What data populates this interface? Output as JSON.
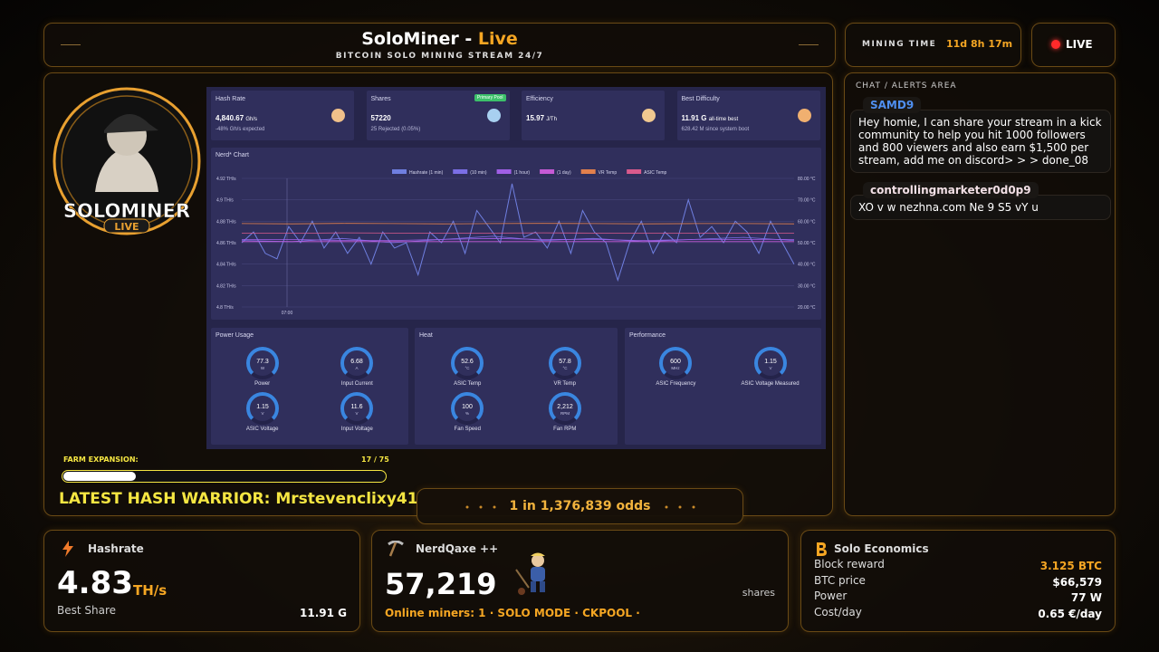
{
  "header": {
    "title": "SoloMiner - ",
    "title_highlight": "Live",
    "subtitle": "BITCOIN SOLO MINING STREAM 24/7"
  },
  "mining_time": {
    "label": "MINING TIME",
    "value": "11d 8h 17m"
  },
  "live_badge": "LIVE",
  "logo": {
    "name": "SOLOMINER",
    "tag": "LIVE"
  },
  "dashboard": {
    "cards": [
      {
        "title": "Hash Rate",
        "value": "4,840.67",
        "unit": "Gh/s",
        "note": "-48% Gh/s expected"
      },
      {
        "title": "Shares",
        "value": "57220",
        "badge": "Primary Pool",
        "note": "25 Rejected (0.05%)"
      },
      {
        "title": "Efficiency",
        "value": "15.97",
        "unit": "J/Th"
      },
      {
        "title": "Best Difficulty",
        "value": "11.91 G",
        "unit": "all-time best",
        "note": "628.42 M since system boot"
      }
    ],
    "chart": {
      "title": "Nerd* Chart",
      "ylim": [
        4.8,
        4.92
      ],
      "yticks": [
        {
          "value": 4.92,
          "label": "4.92 TH/s"
        },
        {
          "value": 4.9,
          "label": "4.9 TH/s"
        },
        {
          "value": 4.88,
          "label": "4.88 TH/s"
        },
        {
          "value": 4.86,
          "label": "4.86 TH/s"
        },
        {
          "value": 4.84,
          "label": "4.84 TH/s"
        },
        {
          "value": 4.82,
          "label": "4.82 TH/s"
        },
        {
          "value": 4.8,
          "label": "4.8 TH/s"
        }
      ],
      "y2lim": [
        20,
        80
      ],
      "y2ticks": [
        {
          "value": 80,
          "label": "80.00 °C"
        },
        {
          "value": 70,
          "label": "70.00 °C"
        },
        {
          "value": 60,
          "label": "60.00 °C"
        },
        {
          "value": 50,
          "label": "50.00 °C"
        },
        {
          "value": 40,
          "label": "40.00 °C"
        },
        {
          "value": 30,
          "label": "30.00 °C"
        },
        {
          "value": 20,
          "label": "20.00 °C"
        }
      ],
      "x_tick_label": "07:00",
      "series": [
        {
          "name": "Hashrate (1 min)",
          "color": "#6f7fe0",
          "values": [
            4.86,
            4.87,
            4.85,
            4.845,
            4.875,
            4.86,
            4.88,
            4.855,
            4.87,
            4.85,
            4.865,
            4.84,
            4.87,
            4.855,
            4.86,
            4.83,
            4.87,
            4.86,
            4.88,
            4.85,
            4.89,
            4.875,
            4.86,
            4.915,
            4.865,
            4.87,
            4.855,
            4.88,
            4.85,
            4.89,
            4.87,
            4.86,
            4.825,
            4.86,
            4.88,
            4.85,
            4.87,
            4.86,
            4.9,
            4.865,
            4.875,
            4.86,
            4.88,
            4.87,
            4.85,
            4.88,
            4.86,
            4.84
          ]
        },
        {
          "name": "(10 min)",
          "color": "#7b6fe6",
          "values": [
            4.862,
            4.861,
            4.864,
            4.86,
            4.863,
            4.866,
            4.862,
            4.864,
            4.861,
            4.863,
            4.865,
            4.862
          ]
        },
        {
          "name": "(1 hour)",
          "color": "#a05fe6",
          "values": [
            4.863,
            4.863,
            4.862,
            4.862,
            4.863,
            4.864,
            4.863,
            4.863,
            4.862,
            4.863,
            4.863,
            4.863
          ]
        },
        {
          "name": "(1 day)",
          "color": "#c65ad6",
          "values": [
            4.861,
            4.861,
            4.861,
            4.861,
            4.861,
            4.861,
            4.861,
            4.861,
            4.861,
            4.861,
            4.861,
            4.861
          ]
        },
        {
          "name": "VR Temp",
          "color": "#e3804c",
          "axis": "y2",
          "values": [
            58.9,
            58.8,
            59,
            58.9,
            58.8,
            58.9,
            59,
            58.9,
            58.8,
            58.9,
            58.9,
            58.8
          ]
        },
        {
          "name": "ASIC Temp",
          "color": "#d95a8c",
          "axis": "y2",
          "values": [
            54.5,
            54.4,
            54.6,
            54.5,
            54.4,
            54.5,
            54.6,
            54.5,
            54.4,
            54.5,
            54.5,
            54.4
          ]
        }
      ]
    },
    "panels": [
      {
        "title": "Power Usage",
        "gauges": [
          {
            "value": "77.3",
            "unit": "W",
            "label": "Power"
          },
          {
            "value": "6.68",
            "unit": "A",
            "label": "Input Current"
          },
          {
            "value": "1.15",
            "unit": "V",
            "label": "ASIC Voltage"
          },
          {
            "value": "11.6",
            "unit": "V",
            "label": "Input Voltage"
          }
        ]
      },
      {
        "title": "Heat",
        "gauges": [
          {
            "value": "52.6",
            "unit": "°C",
            "label": "ASIC Temp"
          },
          {
            "value": "57.8",
            "unit": "°C",
            "label": "VR Temp"
          },
          {
            "value": "100",
            "unit": "%",
            "label": "Fan Speed"
          },
          {
            "value": "2,212",
            "unit": "RPM",
            "label": "Fan RPM"
          }
        ]
      },
      {
        "title": "Performance",
        "gauges": [
          {
            "value": "600",
            "unit": "MHz",
            "label": "ASIC Frequency"
          },
          {
            "value": "1.15",
            "unit": "V",
            "label": "ASIC Voltage Measured"
          }
        ]
      }
    ]
  },
  "farm_expansion": {
    "label": "FARM EXPANSION:",
    "current": 17,
    "separator": "/",
    "total": 75
  },
  "hash_warrior": {
    "label": "LATEST HASH WARRIOR:",
    "name": "Mrstevenclixy41"
  },
  "odds": "1 in 1,376,839 odds",
  "chat": {
    "title": "CHAT / ALERTS AREA",
    "messages": [
      {
        "user": "SAMD9",
        "text": "Hey homie, I can share your stream in a kick community to help you hit 1000 followers and 800 viewers and also earn $1,500 per stream, add me on discord> > > done_08"
      },
      {
        "user": "controllingmarketer0d0p9",
        "text": "XO v w nezhna.com Ne 9 S5 vY u"
      }
    ]
  },
  "hashrate_card": {
    "title": "Hashrate",
    "value": "4.83",
    "unit": "TH/s",
    "best_label": "Best Share",
    "best_value": "11.91 G"
  },
  "miner_card": {
    "title": "NerdQaxe ++",
    "value": "57,219",
    "unit": "shares",
    "status": "Online miners: 1 · SOLO MODE · CKPOOL ·"
  },
  "economics": {
    "title": "Solo Economics",
    "rows": [
      {
        "label": "Block reward",
        "value": "3.125 BTC"
      },
      {
        "label": "BTC price",
        "value": "$66,579"
      },
      {
        "label": "Power",
        "value": "77 W"
      },
      {
        "label": "Cost/day",
        "value": "0.65 €/day"
      }
    ]
  }
}
